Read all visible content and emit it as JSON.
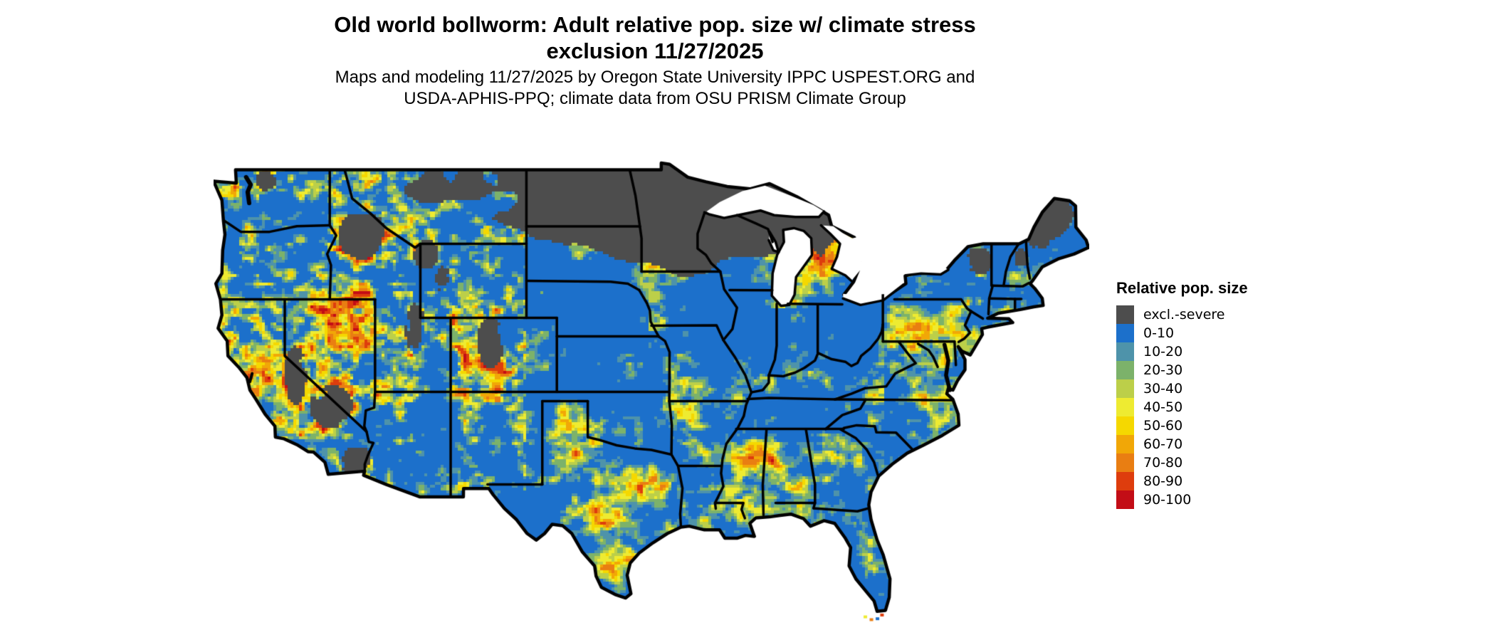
{
  "title": {
    "line1": "Old world bollworm: Adult relative pop. size w/ climate stress",
    "line2": "exclusion 11/27/2025"
  },
  "subtitle": {
    "line1": "Maps and modeling 11/27/2025 by Oregon State University IPPC USPEST.ORG and",
    "line2": "USDA-APHIS-PPQ; climate data from OSU PRISM Climate Group"
  },
  "legend": {
    "title": "Relative pop. size",
    "items": [
      {
        "label": "excl.-severe",
        "color": "#4d4d4d"
      },
      {
        "label": "0-10",
        "color": "#1c70cb"
      },
      {
        "label": "10-20",
        "color": "#4e93aa"
      },
      {
        "label": "20-30",
        "color": "#7cb26a"
      },
      {
        "label": "30-40",
        "color": "#bccf49"
      },
      {
        "label": "40-50",
        "color": "#eeeb31"
      },
      {
        "label": "50-60",
        "color": "#f5d800"
      },
      {
        "label": "60-70",
        "color": "#f1a707"
      },
      {
        "label": "70-80",
        "color": "#e97e12"
      },
      {
        "label": "80-90",
        "color": "#de3d0d"
      },
      {
        "label": "90-100",
        "color": "#c30d16"
      }
    ]
  },
  "map": {
    "water_color": "#ffffff",
    "state_border_color": "#000000",
    "land_base_color": "#1c70cb",
    "excluded_color": "#4d4d4d"
  }
}
